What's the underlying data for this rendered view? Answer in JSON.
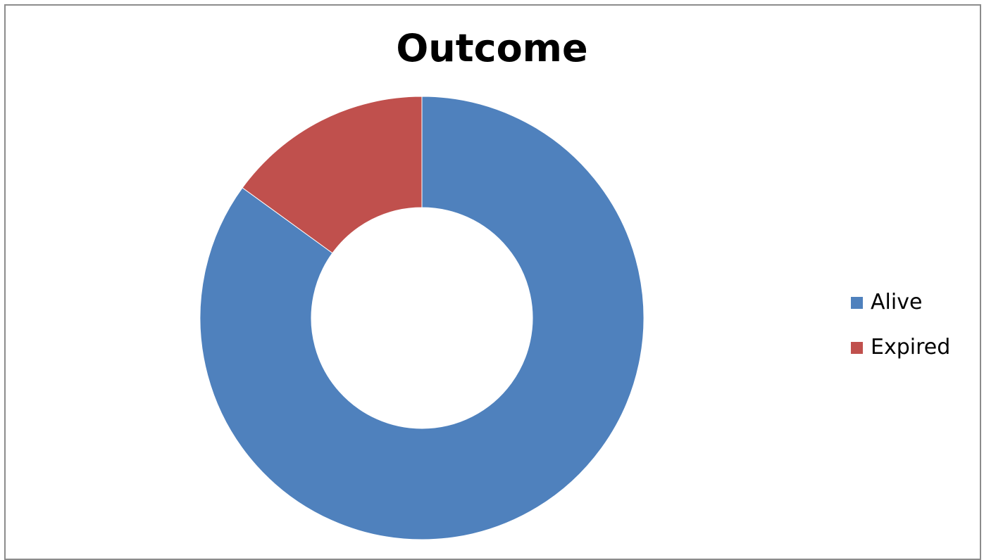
{
  "chart_data": {
    "type": "pie",
    "variant": "doughnut",
    "title": "Outcome",
    "categories": [
      "Alive",
      "Expired"
    ],
    "values": [
      85,
      15
    ],
    "colors": [
      "#4F81BD",
      "#C0504D"
    ],
    "legend_position": "right"
  }
}
